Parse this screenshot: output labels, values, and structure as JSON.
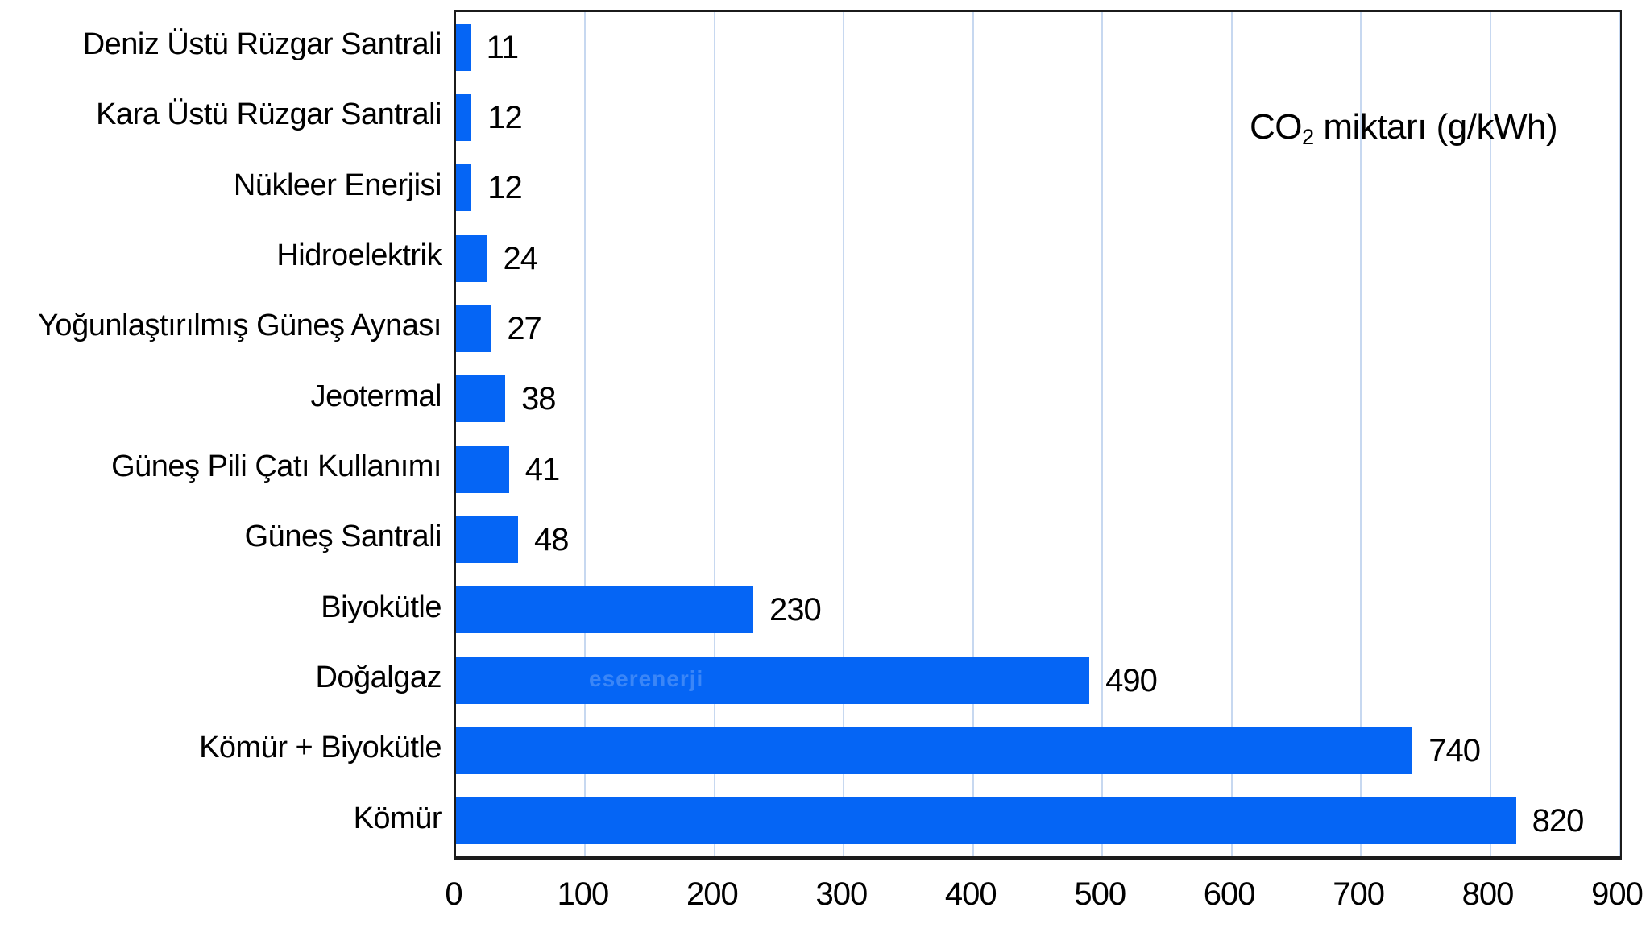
{
  "figure": {
    "background": "#ffffff",
    "title": {
      "prefix": "CO",
      "subscript": "2",
      "rest": " miktarı (g/kWh)"
    },
    "watermark": "eserenerji"
  },
  "chart_data": {
    "type": "bar",
    "orientation": "horizontal",
    "title": "CO2 miktarı (g/kWh)",
    "categories": [
      "Deniz Üstü Rüzgar Santrali",
      "Kara Üstü Rüzgar Santrali",
      "Nükleer Enerjisi",
      "Hidroelektrik",
      "Yoğunlaştırılmış Güneş Aynası",
      "Jeotermal",
      "Güneş Pili Çatı Kullanımı",
      "Güneş Santrali",
      "Biyokütle",
      "Doğalgaz",
      "Kömür + Biyokütle",
      "Kömür"
    ],
    "values": [
      11,
      12,
      12,
      24,
      27,
      38,
      41,
      48,
      230,
      490,
      740,
      820
    ],
    "value_labels": [
      "11",
      "12",
      "12",
      "24",
      "27",
      "38",
      "41",
      "48",
      "230",
      "490",
      "740",
      "820"
    ],
    "xlim": [
      0,
      900
    ],
    "x_ticks": [
      0,
      100,
      200,
      300,
      400,
      500,
      600,
      700,
      800,
      900
    ],
    "xlabel": "",
    "ylabel": "",
    "grid": "vertical",
    "legend": "none",
    "colors": {
      "bar": "#0565f5",
      "gridline": "#c7d8f0",
      "plot_border": "#1b1b1b",
      "text": "#000000"
    }
  }
}
